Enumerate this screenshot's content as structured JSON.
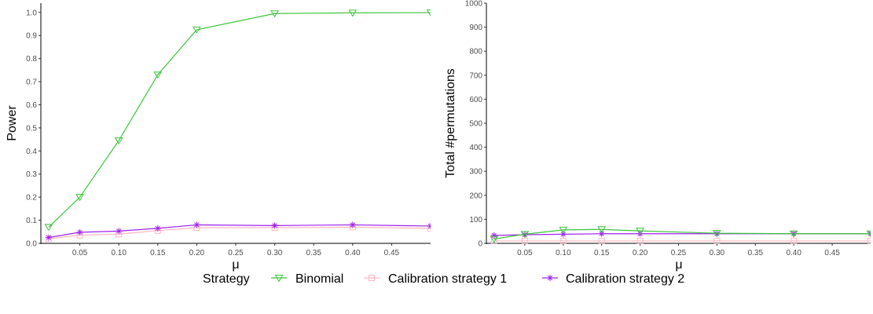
{
  "chart_data": [
    {
      "type": "line",
      "title": "",
      "xlabel": "μ",
      "ylabel": "Power",
      "x": [
        0.01,
        0.05,
        0.1,
        0.15,
        0.2,
        0.3,
        0.4,
        0.5
      ],
      "xlim": [
        0.0,
        0.5
      ],
      "ylim": [
        0.0,
        1.04
      ],
      "xticks": [
        0.05,
        0.1,
        0.15,
        0.2,
        0.25,
        0.3,
        0.35,
        0.4,
        0.45
      ],
      "xtick_labels": [
        "0.05",
        "0.10",
        "0.15",
        "0.20",
        "0.25",
        "0.30",
        "0.35",
        "0.40",
        "0.45"
      ],
      "yticks": [
        0,
        0.1,
        0.2,
        0.3,
        0.4,
        0.5,
        0.6,
        0.7,
        0.8,
        0.9,
        1.0
      ],
      "ytick_labels": [
        "0.0",
        "0.1",
        "0.2",
        "0.3",
        "0.4",
        "0.5",
        "0.6",
        "0.7",
        "0.8",
        "0.9",
        "1.0"
      ],
      "grid": false,
      "series": [
        {
          "name": "Binomial",
          "values": [
            0.07,
            0.2,
            0.445,
            0.73,
            0.925,
            0.995,
            0.998,
            0.999
          ]
        },
        {
          "name": "Calibration strategy 1",
          "values": [
            0.02,
            0.035,
            0.04,
            0.055,
            0.068,
            0.068,
            0.07,
            0.065
          ]
        },
        {
          "name": "Calibration strategy 2",
          "values": [
            0.025,
            0.048,
            0.053,
            0.065,
            0.08,
            0.077,
            0.08,
            0.075
          ]
        }
      ]
    },
    {
      "type": "line",
      "title": "",
      "xlabel": "μ",
      "ylabel": "Total #permutations",
      "x": [
        0.01,
        0.05,
        0.1,
        0.15,
        0.2,
        0.3,
        0.4,
        0.5
      ],
      "xlim": [
        0.0,
        0.5
      ],
      "ylim": [
        0,
        1000
      ],
      "xticks": [
        0.05,
        0.1,
        0.15,
        0.2,
        0.25,
        0.3,
        0.35,
        0.4,
        0.45
      ],
      "xtick_labels": [
        "0.05",
        "0.10",
        "0.15",
        "0.20",
        "0.25",
        "0.30",
        "0.35",
        "0.40",
        "0.45"
      ],
      "yticks": [
        0,
        100,
        200,
        300,
        400,
        500,
        600,
        700,
        800,
        900,
        1000
      ],
      "ytick_labels": [
        "0",
        "100",
        "200",
        "300",
        "400",
        "500",
        "600",
        "700",
        "800",
        "900",
        "1000"
      ],
      "grid": false,
      "series": [
        {
          "name": "Binomial",
          "values": [
            18,
            38,
            56,
            58,
            52,
            42,
            40,
            40
          ]
        },
        {
          "name": "Calibration strategy 1",
          "values": [
            10,
            10,
            10,
            10,
            10,
            10,
            10,
            10
          ]
        },
        {
          "name": "Calibration strategy 2",
          "values": [
            33,
            36,
            38,
            40,
            40,
            40,
            40,
            40
          ]
        }
      ]
    }
  ],
  "legend": {
    "title": "Strategy",
    "position": "bottom",
    "items": [
      {
        "label": "Binomial",
        "color": "#3bc43b",
        "marker": "triangle-down"
      },
      {
        "label": "Calibration strategy 1",
        "color": "#ffb6c1",
        "marker": "square"
      },
      {
        "label": "Calibration strategy 2",
        "color": "#a020f0",
        "marker": "asterisk"
      }
    ]
  },
  "colors": {
    "Binomial": "#3bc43b",
    "Calibration strategy 1": "#ffb6c1",
    "Calibration strategy 2": "#a020f0",
    "axis": "#000000",
    "tick_text": "#4d4d4d"
  }
}
